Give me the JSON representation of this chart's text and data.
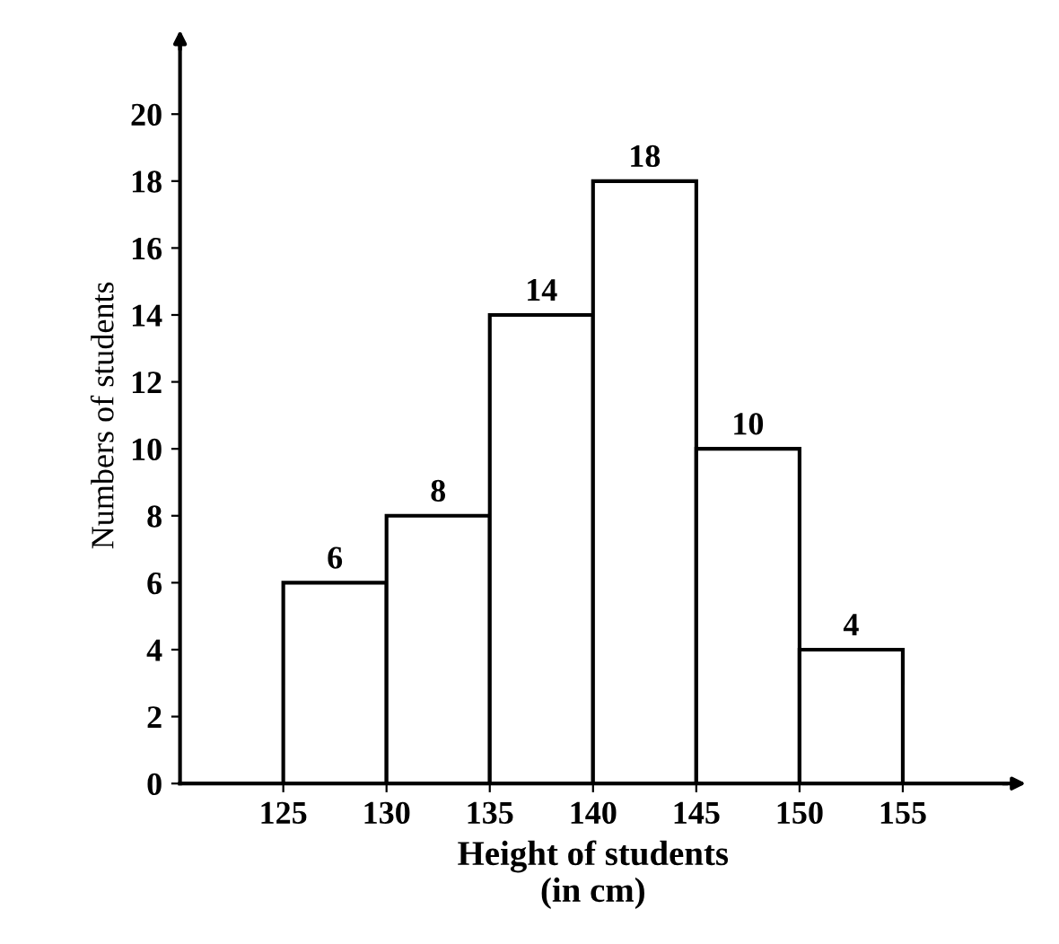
{
  "chart_data": {
    "type": "histogram",
    "xlabel": "Height of students\n(in cm)",
    "ylabel": "Numbers of students",
    "bins": [
      125,
      130,
      135,
      140,
      145,
      150,
      155
    ],
    "values": [
      6,
      8,
      14,
      18,
      10,
      4
    ],
    "data_labels": true,
    "xlim": [
      120,
      160
    ],
    "xticks": [
      125,
      130,
      135,
      140,
      145,
      150,
      155
    ],
    "ylim": [
      0,
      22
    ],
    "yticks": [
      0,
      2,
      4,
      6,
      8,
      10,
      12,
      14,
      16,
      18,
      20
    ],
    "grid": false,
    "legend": false
  }
}
